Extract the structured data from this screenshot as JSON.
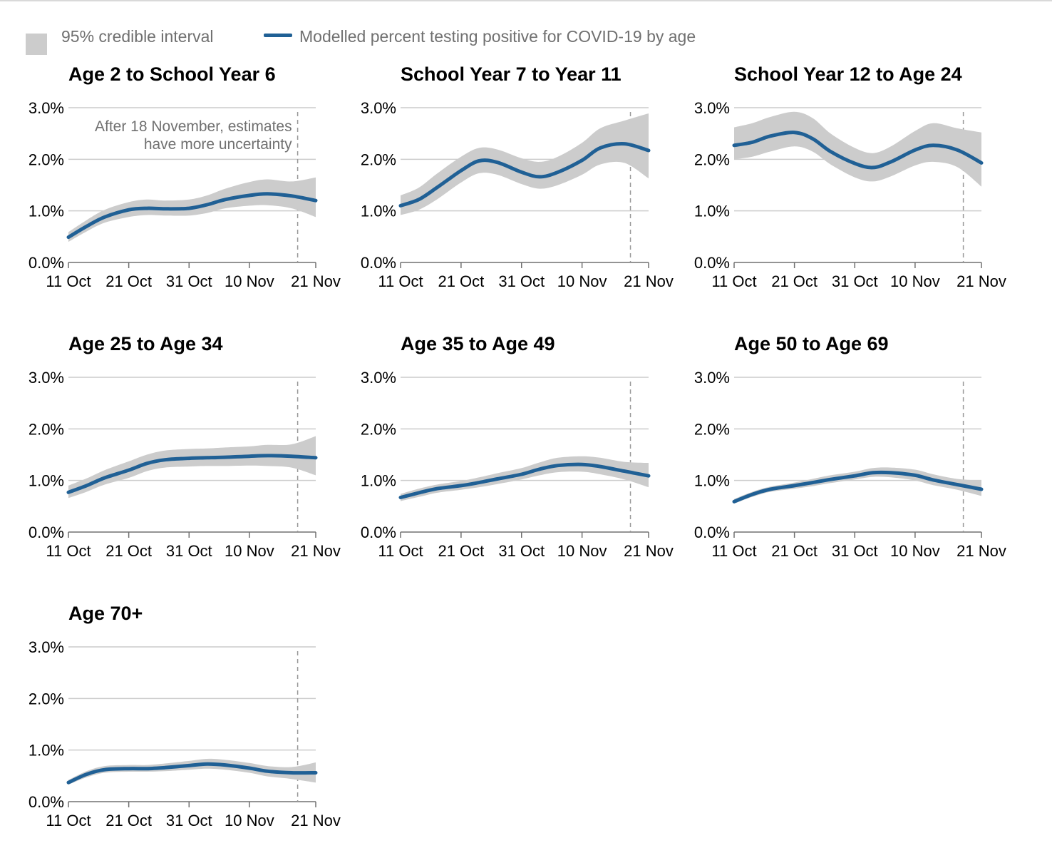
{
  "legend": {
    "interval_label": "95% credible interval",
    "line_label": "Modelled percent testing positive for COVID-19 by age"
  },
  "colors": {
    "line": "#206095",
    "band": "#cccccc",
    "grid": "#cccccc",
    "text": "#000000",
    "muted": "#707070"
  },
  "chart_data": [
    {
      "type": "line",
      "title": "Age 2 to School Year 6",
      "x": [
        "11 Oct",
        "14 Oct",
        "17 Oct",
        "21 Oct",
        "24 Oct",
        "27 Oct",
        "31 Oct",
        "3 Nov",
        "6 Nov",
        "10 Nov",
        "13 Nov",
        "17 Nov",
        "21 Nov"
      ],
      "xticks": [
        "11 Oct",
        "21 Oct",
        "31 Oct",
        "10 Nov",
        "21 Nov"
      ],
      "yticks": [
        "0.0%",
        "1.0%",
        "2.0%",
        "3.0%"
      ],
      "ylim": [
        0,
        3
      ],
      "series": [
        {
          "values": [
            0.49,
            0.7,
            0.88,
            1.02,
            1.05,
            1.04,
            1.05,
            1.12,
            1.22,
            1.3,
            1.33,
            1.29,
            1.2
          ]
        }
      ],
      "interval_lower": [
        0.4,
        0.6,
        0.77,
        0.88,
        0.92,
        0.91,
        0.91,
        0.96,
        1.05,
        1.1,
        1.11,
        1.05,
        0.88
      ],
      "interval_upper": [
        0.59,
        0.82,
        1.02,
        1.17,
        1.22,
        1.2,
        1.22,
        1.3,
        1.43,
        1.56,
        1.61,
        1.57,
        1.65
      ],
      "annotation": "After 18 November, estimates have more uncertainty",
      "cutoff": "18 Nov"
    },
    {
      "type": "line",
      "title": "School Year 7 to Year 11",
      "x": [
        "11 Oct",
        "14 Oct",
        "17 Oct",
        "21 Oct",
        "24 Oct",
        "27 Oct",
        "31 Oct",
        "3 Nov",
        "6 Nov",
        "10 Nov",
        "13 Nov",
        "17 Nov",
        "21 Nov"
      ],
      "xticks": [
        "11 Oct",
        "21 Oct",
        "31 Oct",
        "10 Nov",
        "21 Nov"
      ],
      "yticks": [
        "0.0%",
        "1.0%",
        "2.0%",
        "3.0%"
      ],
      "ylim": [
        0,
        3
      ],
      "series": [
        {
          "values": [
            1.1,
            1.22,
            1.45,
            1.78,
            1.97,
            1.94,
            1.75,
            1.66,
            1.75,
            1.98,
            2.22,
            2.3,
            2.17
          ]
        }
      ],
      "interval_lower": [
        0.92,
        1.02,
        1.22,
        1.55,
        1.73,
        1.7,
        1.52,
        1.43,
        1.5,
        1.7,
        1.9,
        1.93,
        1.63
      ],
      "interval_upper": [
        1.3,
        1.45,
        1.72,
        2.05,
        2.22,
        2.19,
        2.02,
        1.95,
        2.05,
        2.32,
        2.6,
        2.75,
        2.89
      ]
    },
    {
      "type": "line",
      "title": "School Year 12 to Age 24",
      "x": [
        "11 Oct",
        "14 Oct",
        "17 Oct",
        "21 Oct",
        "24 Oct",
        "27 Oct",
        "31 Oct",
        "3 Nov",
        "6 Nov",
        "10 Nov",
        "13 Nov",
        "17 Nov",
        "21 Nov"
      ],
      "xticks": [
        "11 Oct",
        "21 Oct",
        "31 Oct",
        "10 Nov",
        "21 Nov"
      ],
      "yticks": [
        "0.0%",
        "1.0%",
        "2.0%",
        "3.0%"
      ],
      "ylim": [
        0,
        3
      ],
      "series": [
        {
          "values": [
            2.27,
            2.33,
            2.45,
            2.52,
            2.4,
            2.15,
            1.92,
            1.84,
            1.95,
            2.18,
            2.27,
            2.18,
            1.93
          ]
        }
      ],
      "interval_lower": [
        2.0,
        2.05,
        2.15,
        2.25,
        2.15,
        1.9,
        1.65,
        1.57,
        1.67,
        1.88,
        1.95,
        1.85,
        1.47
      ],
      "interval_upper": [
        2.62,
        2.7,
        2.82,
        2.92,
        2.8,
        2.5,
        2.22,
        2.12,
        2.25,
        2.55,
        2.7,
        2.6,
        2.52
      ]
    },
    {
      "type": "line",
      "title": "Age 25 to Age 34",
      "x": [
        "11 Oct",
        "14 Oct",
        "17 Oct",
        "21 Oct",
        "24 Oct",
        "27 Oct",
        "31 Oct",
        "3 Nov",
        "6 Nov",
        "10 Nov",
        "13 Nov",
        "17 Nov",
        "21 Nov"
      ],
      "xticks": [
        "11 Oct",
        "21 Oct",
        "31 Oct",
        "10 Nov",
        "21 Nov"
      ],
      "yticks": [
        "0.0%",
        "1.0%",
        "2.0%",
        "3.0%"
      ],
      "ylim": [
        0,
        3
      ],
      "series": [
        {
          "values": [
            0.77,
            0.9,
            1.05,
            1.2,
            1.33,
            1.4,
            1.43,
            1.44,
            1.45,
            1.47,
            1.48,
            1.47,
            1.44
          ]
        }
      ],
      "interval_lower": [
        0.66,
        0.78,
        0.92,
        1.05,
        1.18,
        1.25,
        1.27,
        1.28,
        1.28,
        1.29,
        1.28,
        1.25,
        1.1
      ],
      "interval_upper": [
        0.9,
        1.04,
        1.2,
        1.37,
        1.5,
        1.58,
        1.61,
        1.62,
        1.64,
        1.66,
        1.69,
        1.7,
        1.86
      ]
    },
    {
      "type": "line",
      "title": "Age 35 to Age 49",
      "x": [
        "11 Oct",
        "14 Oct",
        "17 Oct",
        "21 Oct",
        "24 Oct",
        "27 Oct",
        "31 Oct",
        "3 Nov",
        "6 Nov",
        "10 Nov",
        "13 Nov",
        "17 Nov",
        "21 Nov"
      ],
      "xticks": [
        "11 Oct",
        "21 Oct",
        "31 Oct",
        "10 Nov",
        "21 Nov"
      ],
      "yticks": [
        "0.0%",
        "1.0%",
        "2.0%",
        "3.0%"
      ],
      "ylim": [
        0,
        3
      ],
      "series": [
        {
          "values": [
            0.67,
            0.76,
            0.84,
            0.9,
            0.96,
            1.03,
            1.12,
            1.22,
            1.29,
            1.31,
            1.27,
            1.18,
            1.09
          ]
        }
      ],
      "interval_lower": [
        0.6,
        0.68,
        0.76,
        0.82,
        0.87,
        0.93,
        1.02,
        1.1,
        1.16,
        1.17,
        1.12,
        1.02,
        0.87
      ],
      "interval_upper": [
        0.74,
        0.84,
        0.92,
        0.99,
        1.06,
        1.14,
        1.24,
        1.35,
        1.44,
        1.47,
        1.44,
        1.36,
        1.34
      ]
    },
    {
      "type": "line",
      "title": "Age 50 to Age 69",
      "x": [
        "11 Oct",
        "14 Oct",
        "17 Oct",
        "21 Oct",
        "24 Oct",
        "27 Oct",
        "31 Oct",
        "3 Nov",
        "6 Nov",
        "10 Nov",
        "13 Nov",
        "17 Nov",
        "21 Nov"
      ],
      "xticks": [
        "11 Oct",
        "21 Oct",
        "31 Oct",
        "10 Nov",
        "21 Nov"
      ],
      "yticks": [
        "0.0%",
        "1.0%",
        "2.0%",
        "3.0%"
      ],
      "ylim": [
        0,
        3
      ],
      "series": [
        {
          "values": [
            0.59,
            0.73,
            0.83,
            0.9,
            0.96,
            1.02,
            1.09,
            1.15,
            1.15,
            1.1,
            1.01,
            0.92,
            0.83
          ]
        }
      ],
      "interval_lower": [
        0.55,
        0.68,
        0.78,
        0.84,
        0.89,
        0.95,
        1.02,
        1.07,
        1.06,
        1.0,
        0.91,
        0.82,
        0.7
      ],
      "interval_upper": [
        0.64,
        0.78,
        0.88,
        0.96,
        1.03,
        1.1,
        1.17,
        1.24,
        1.25,
        1.21,
        1.12,
        1.03,
        1.0
      ]
    },
    {
      "type": "line",
      "title": "Age 70+",
      "x": [
        "11 Oct",
        "14 Oct",
        "17 Oct",
        "21 Oct",
        "24 Oct",
        "27 Oct",
        "31 Oct",
        "3 Nov",
        "6 Nov",
        "10 Nov",
        "13 Nov",
        "17 Nov",
        "21 Nov"
      ],
      "xticks": [
        "11 Oct",
        "21 Oct",
        "31 Oct",
        "10 Nov",
        "21 Nov"
      ],
      "yticks": [
        "0.0%",
        "1.0%",
        "2.0%",
        "3.0%"
      ],
      "ylim": [
        0,
        3
      ],
      "series": [
        {
          "values": [
            0.37,
            0.53,
            0.62,
            0.64,
            0.64,
            0.66,
            0.7,
            0.73,
            0.71,
            0.65,
            0.59,
            0.56,
            0.56
          ]
        }
      ],
      "interval_lower": [
        0.33,
        0.47,
        0.56,
        0.58,
        0.58,
        0.59,
        0.62,
        0.64,
        0.62,
        0.56,
        0.49,
        0.44,
        0.37
      ],
      "interval_upper": [
        0.42,
        0.59,
        0.69,
        0.71,
        0.71,
        0.74,
        0.79,
        0.83,
        0.81,
        0.75,
        0.69,
        0.67,
        0.76
      ]
    }
  ]
}
